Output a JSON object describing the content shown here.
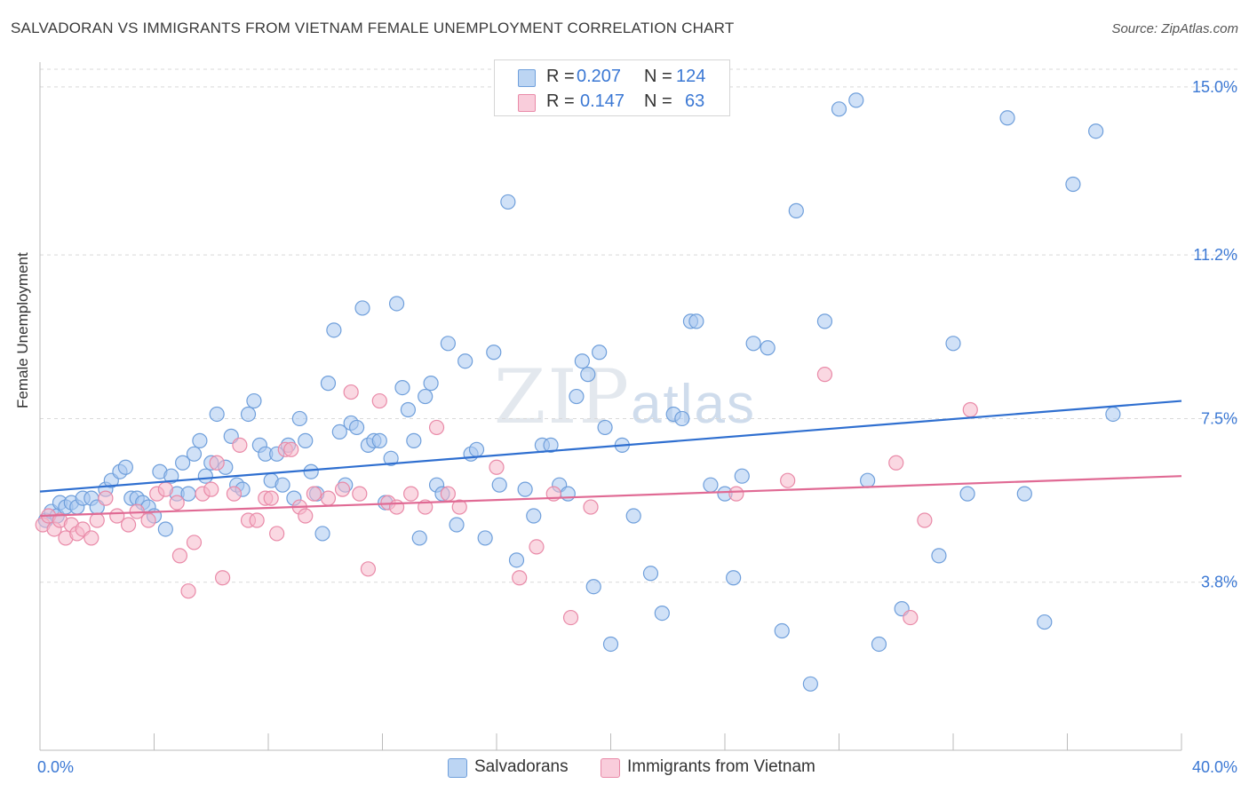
{
  "title": "SALVADORAN VS IMMIGRANTS FROM VIETNAM FEMALE UNEMPLOYMENT CORRELATION CHART",
  "source": "Source: ZipAtlas.com",
  "watermark": {
    "zip": "ZIP",
    "atlas": "atlas"
  },
  "legend_top": [
    {
      "r_label": "R =",
      "r_value": "0.207",
      "n_label": "N =",
      "n_value": "124"
    },
    {
      "r_label": "R =",
      "r_value": "0.147",
      "n_label": "N =",
      "n_value": "63"
    }
  ],
  "colors": {
    "blue_fill": "#a9c8f0",
    "blue_stroke": "#6f9fdb",
    "blue_line": "#2f6fd0",
    "pink_fill": "#f6b8cb",
    "pink_stroke": "#e98aa8",
    "pink_line": "#e06a94",
    "grid": "#d9d9d9",
    "axis_label": "#3b78d4"
  },
  "chart_data": {
    "type": "scatter",
    "title": "SALVADORAN VS IMMIGRANTS FROM VIETNAM FEMALE UNEMPLOYMENT CORRELATION CHART",
    "xlabel": "",
    "ylabel": "Female Unemployment",
    "xlim": [
      0,
      40
    ],
    "ylim": [
      0,
      15.4
    ],
    "x_tick_labels": [
      "0.0%",
      "40.0%"
    ],
    "y_ticks": [
      3.8,
      7.5,
      11.2,
      15.0
    ],
    "y_tick_labels": [
      "3.8%",
      "7.5%",
      "11.2%",
      "15.0%"
    ],
    "grid": true,
    "legend": "bottom-center",
    "series": [
      {
        "name": "Salvadorans",
        "r": 0.207,
        "n": 124,
        "trend": [
          [
            0,
            5.85
          ],
          [
            40,
            7.9
          ]
        ],
        "points": [
          [
            0.2,
            5.2
          ],
          [
            0.4,
            5.4
          ],
          [
            0.6,
            5.3
          ],
          [
            0.7,
            5.6
          ],
          [
            0.9,
            5.5
          ],
          [
            1.1,
            5.6
          ],
          [
            1.3,
            5.5
          ],
          [
            1.5,
            5.7
          ],
          [
            1.8,
            5.7
          ],
          [
            2.0,
            5.5
          ],
          [
            2.3,
            5.9
          ],
          [
            2.5,
            6.1
          ],
          [
            2.8,
            6.3
          ],
          [
            3.0,
            6.4
          ],
          [
            3.2,
            5.7
          ],
          [
            3.4,
            5.7
          ],
          [
            3.6,
            5.6
          ],
          [
            3.8,
            5.5
          ],
          [
            4.0,
            5.3
          ],
          [
            4.2,
            6.3
          ],
          [
            4.4,
            5.0
          ],
          [
            4.6,
            6.2
          ],
          [
            4.8,
            5.8
          ],
          [
            5.0,
            6.5
          ],
          [
            5.2,
            5.8
          ],
          [
            5.4,
            6.7
          ],
          [
            5.6,
            7.0
          ],
          [
            5.8,
            6.2
          ],
          [
            6.0,
            6.5
          ],
          [
            6.2,
            7.6
          ],
          [
            6.5,
            6.4
          ],
          [
            6.7,
            7.1
          ],
          [
            6.9,
            6.0
          ],
          [
            7.1,
            5.9
          ],
          [
            7.3,
            7.6
          ],
          [
            7.5,
            7.9
          ],
          [
            7.7,
            6.9
          ],
          [
            7.9,
            6.7
          ],
          [
            8.1,
            6.1
          ],
          [
            8.3,
            6.7
          ],
          [
            8.5,
            6.0
          ],
          [
            8.7,
            6.9
          ],
          [
            8.9,
            5.7
          ],
          [
            9.1,
            7.5
          ],
          [
            9.3,
            7.0
          ],
          [
            9.5,
            6.3
          ],
          [
            9.7,
            5.8
          ],
          [
            9.9,
            4.9
          ],
          [
            10.1,
            8.3
          ],
          [
            10.3,
            9.5
          ],
          [
            10.5,
            7.2
          ],
          [
            10.7,
            6.0
          ],
          [
            10.9,
            7.4
          ],
          [
            11.1,
            7.3
          ],
          [
            11.3,
            10.0
          ],
          [
            11.5,
            6.9
          ],
          [
            11.7,
            7.0
          ],
          [
            11.9,
            7.0
          ],
          [
            12.1,
            5.6
          ],
          [
            12.3,
            6.6
          ],
          [
            12.5,
            10.1
          ],
          [
            12.7,
            8.2
          ],
          [
            12.9,
            7.7
          ],
          [
            13.1,
            7.0
          ],
          [
            13.3,
            4.8
          ],
          [
            13.5,
            8.0
          ],
          [
            13.7,
            8.3
          ],
          [
            13.9,
            6.0
          ],
          [
            14.1,
            5.8
          ],
          [
            14.3,
            9.2
          ],
          [
            14.6,
            5.1
          ],
          [
            14.9,
            8.8
          ],
          [
            15.1,
            6.7
          ],
          [
            15.3,
            6.8
          ],
          [
            15.6,
            4.8
          ],
          [
            15.9,
            9.0
          ],
          [
            16.1,
            6.0
          ],
          [
            16.4,
            12.4
          ],
          [
            16.7,
            4.3
          ],
          [
            17.0,
            5.9
          ],
          [
            17.3,
            5.3
          ],
          [
            17.6,
            6.9
          ],
          [
            17.9,
            6.9
          ],
          [
            18.2,
            6.0
          ],
          [
            18.5,
            5.8
          ],
          [
            18.8,
            8.0
          ],
          [
            19.0,
            8.8
          ],
          [
            19.2,
            8.5
          ],
          [
            19.4,
            3.7
          ],
          [
            19.6,
            9.0
          ],
          [
            19.8,
            7.3
          ],
          [
            20.0,
            2.4
          ],
          [
            20.4,
            6.9
          ],
          [
            20.8,
            5.3
          ],
          [
            21.4,
            4.0
          ],
          [
            21.8,
            3.1
          ],
          [
            22.2,
            7.6
          ],
          [
            22.5,
            7.5
          ],
          [
            22.8,
            9.7
          ],
          [
            23.0,
            9.7
          ],
          [
            23.5,
            6.0
          ],
          [
            24.0,
            5.8
          ],
          [
            24.3,
            3.9
          ],
          [
            24.6,
            6.2
          ],
          [
            25.0,
            9.2
          ],
          [
            25.5,
            9.1
          ],
          [
            26.0,
            2.7
          ],
          [
            26.5,
            12.2
          ],
          [
            27.0,
            1.5
          ],
          [
            27.5,
            9.7
          ],
          [
            28.0,
            14.5
          ],
          [
            28.6,
            14.7
          ],
          [
            29.0,
            6.1
          ],
          [
            29.4,
            2.4
          ],
          [
            30.2,
            3.2
          ],
          [
            31.5,
            4.4
          ],
          [
            32.0,
            9.2
          ],
          [
            32.5,
            5.8
          ],
          [
            33.9,
            14.3
          ],
          [
            34.5,
            5.8
          ],
          [
            35.2,
            2.9
          ],
          [
            36.2,
            12.8
          ],
          [
            37.0,
            14.0
          ],
          [
            37.6,
            7.6
          ]
        ]
      },
      {
        "name": "Immigrants from Vietnam",
        "r": 0.147,
        "n": 63,
        "trend": [
          [
            0,
            5.3
          ],
          [
            40,
            6.2
          ]
        ],
        "points": [
          [
            0.1,
            5.1
          ],
          [
            0.3,
            5.3
          ],
          [
            0.5,
            5.0
          ],
          [
            0.7,
            5.2
          ],
          [
            0.9,
            4.8
          ],
          [
            1.1,
            5.1
          ],
          [
            1.3,
            4.9
          ],
          [
            1.5,
            5.0
          ],
          [
            1.8,
            4.8
          ],
          [
            2.0,
            5.2
          ],
          [
            2.3,
            5.7
          ],
          [
            2.7,
            5.3
          ],
          [
            3.1,
            5.1
          ],
          [
            3.4,
            5.4
          ],
          [
            3.8,
            5.2
          ],
          [
            4.1,
            5.8
          ],
          [
            4.4,
            5.9
          ],
          [
            4.8,
            5.6
          ],
          [
            4.9,
            4.4
          ],
          [
            5.2,
            3.6
          ],
          [
            5.4,
            4.7
          ],
          [
            5.7,
            5.8
          ],
          [
            6.0,
            5.9
          ],
          [
            6.2,
            6.5
          ],
          [
            6.4,
            3.9
          ],
          [
            6.8,
            5.8
          ],
          [
            7.0,
            6.9
          ],
          [
            7.3,
            5.2
          ],
          [
            7.6,
            5.2
          ],
          [
            7.9,
            5.7
          ],
          [
            8.1,
            5.7
          ],
          [
            8.3,
            4.9
          ],
          [
            8.6,
            6.8
          ],
          [
            8.8,
            6.8
          ],
          [
            9.1,
            5.5
          ],
          [
            9.3,
            5.3
          ],
          [
            9.6,
            5.8
          ],
          [
            10.1,
            5.7
          ],
          [
            10.6,
            5.9
          ],
          [
            10.9,
            8.1
          ],
          [
            11.2,
            5.8
          ],
          [
            11.5,
            4.1
          ],
          [
            11.9,
            7.9
          ],
          [
            12.2,
            5.6
          ],
          [
            12.5,
            5.5
          ],
          [
            13.0,
            5.8
          ],
          [
            13.5,
            5.5
          ],
          [
            13.9,
            7.3
          ],
          [
            14.3,
            5.8
          ],
          [
            14.7,
            5.5
          ],
          [
            16.0,
            6.4
          ],
          [
            16.8,
            3.9
          ],
          [
            17.4,
            4.6
          ],
          [
            18.0,
            5.8
          ],
          [
            18.6,
            3.0
          ],
          [
            19.3,
            5.5
          ],
          [
            24.4,
            5.8
          ],
          [
            26.2,
            6.1
          ],
          [
            27.5,
            8.5
          ],
          [
            30.0,
            6.5
          ],
          [
            30.5,
            3.0
          ],
          [
            31.0,
            5.2
          ],
          [
            32.6,
            7.7
          ]
        ]
      }
    ]
  },
  "bottom_legend": [
    "Salvadorans",
    "Immigrants from Vietnam"
  ]
}
